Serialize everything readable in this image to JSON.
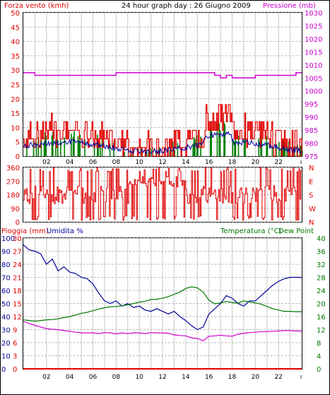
{
  "header": {
    "left_label": "Forza vento (kmh)",
    "title": "24 hour graph day : 26 Giugno 2009",
    "right_label": "Pressione (mb)"
  },
  "panel3_labels": {
    "rain": "Pioggia (mm)",
    "humidity": "Umidita %",
    "temperature": "Temperatura (°C)",
    "dew": "Dew Point"
  },
  "colors": {
    "wind": "#e00000",
    "wind_avg": "#0000a0",
    "wind_green": "#008000",
    "pressure": "#cc00cc",
    "humidity": "#000099",
    "temperature": "#007700",
    "dew": "#cc00cc",
    "rain": "#dd0000",
    "grid": "#c8c8c8"
  },
  "chart_data": [
    {
      "type": "line",
      "name": "wind_pressure",
      "x_ticks": [
        "02",
        "04",
        "06",
        "08",
        "10",
        "12",
        "14",
        "16",
        "18",
        "20",
        "22"
      ],
      "left_axis_label": "Forza vento (kmh)",
      "left_ticks": [
        "0",
        "5",
        "10",
        "15",
        "20",
        "25",
        "30",
        "35",
        "40",
        "45",
        "50"
      ],
      "ylim": [
        0,
        50
      ],
      "right_axis_label": "Pressione (mb)",
      "right_ticks": [
        "975",
        "980",
        "985",
        "990",
        "995",
        "1000",
        "1005",
        "1010",
        "1015",
        "1020",
        "1025",
        "1030"
      ],
      "y2lim": [
        975,
        1030
      ],
      "series": [
        {
          "name": "Pressione",
          "x": [
            0,
            1,
            2,
            3,
            4,
            5,
            6,
            7,
            8,
            9,
            10,
            11,
            12,
            13,
            14,
            15,
            16,
            16.5,
            17,
            17.5,
            18,
            19,
            20,
            21,
            22,
            23,
            23.5,
            24
          ],
          "values": [
            1007,
            1006,
            1006,
            1006,
            1006,
            1006,
            1006,
            1006,
            1007,
            1007,
            1007,
            1007,
            1007,
            1007,
            1007,
            1007,
            1007,
            1006,
            1005,
            1006,
            1005,
            1005,
            1006,
            1006,
            1006,
            1006,
            1007,
            1007
          ]
        }
      ]
    },
    {
      "type": "line",
      "name": "wind_direction",
      "x_ticks": [
        "02",
        "04",
        "06",
        "08",
        "10",
        "12",
        "14",
        "16",
        "18",
        "20",
        "22"
      ],
      "left_ticks": [
        "0",
        "90",
        "180",
        "270",
        "360"
      ],
      "ylim": [
        0,
        360
      ],
      "right_ticks": [
        "N",
        "E",
        "S",
        "W",
        "N"
      ]
    },
    {
      "type": "line",
      "name": "temp_humidity",
      "x_ticks": [
        "02",
        "04",
        "06",
        "08",
        "10",
        "12",
        "14",
        "16",
        "18",
        "20",
        "22"
      ],
      "humidity_ticks": [
        "0",
        "10",
        "20",
        "30",
        "40",
        "50",
        "60",
        "70",
        "80",
        "90",
        "100"
      ],
      "rain_ticks": [
        "0",
        "3",
        "6",
        "9",
        "12",
        "15",
        "18",
        "21",
        "24",
        "27",
        "30"
      ],
      "temp_ticks": [
        "0",
        "4",
        "8",
        "12",
        "16",
        "20",
        "24",
        "28",
        "32",
        "36",
        "40"
      ],
      "series": [
        {
          "name": "Umidita %",
          "x": [
            0,
            0.5,
            1,
            1.5,
            2,
            2.5,
            3,
            3.5,
            4,
            4.5,
            5,
            5.5,
            6,
            6.5,
            7,
            7.5,
            8,
            8.5,
            9,
            9.5,
            10,
            10.5,
            11,
            11.5,
            12,
            12.5,
            13,
            13.5,
            14,
            14.5,
            15,
            15.5,
            16,
            16.5,
            17,
            17.5,
            18,
            18.5,
            19,
            19.5,
            20,
            20.5,
            21,
            21.5,
            22,
            22.5,
            23,
            23.5,
            24
          ],
          "values": [
            95,
            91,
            90,
            88,
            80,
            84,
            75,
            78,
            74,
            73,
            70,
            69,
            65,
            58,
            52,
            50,
            52,
            48,
            50,
            47,
            48,
            45,
            44,
            46,
            44,
            42,
            44,
            40,
            37,
            33,
            30,
            32,
            42,
            46,
            50,
            56,
            54,
            50,
            48,
            52,
            52,
            56,
            60,
            64,
            67,
            69,
            70,
            70,
            70
          ]
        },
        {
          "name": "Temperatura (°C)",
          "x": [
            0,
            0.5,
            1,
            1.5,
            2,
            2.5,
            3,
            3.5,
            4,
            4.5,
            5,
            5.5,
            6,
            6.5,
            7,
            7.5,
            8,
            8.5,
            9,
            9.5,
            10,
            10.5,
            11,
            11.5,
            12,
            12.5,
            13,
            13.5,
            14,
            14.5,
            15,
            15.5,
            16,
            16.5,
            17,
            17.5,
            18,
            18.5,
            19,
            19.5,
            20,
            20.5,
            21,
            21.5,
            22,
            22.5,
            23,
            23.5,
            24
          ],
          "values": [
            15,
            14.8,
            14.6,
            14.8,
            15,
            15.1,
            15.3,
            15.7,
            16,
            16.5,
            17,
            17.3,
            17.8,
            18.3,
            18.7,
            19,
            19.1,
            19.3,
            19.6,
            20,
            20.4,
            20.7,
            21.2,
            21.3,
            21.6,
            22.1,
            22.8,
            23.5,
            24.6,
            25.1,
            24.8,
            23.5,
            21,
            19.9,
            20.2,
            20.6,
            20.3,
            20.1,
            20.8,
            20.5,
            20.2,
            19.8,
            19.1,
            18.4,
            18,
            17.6,
            17.6,
            17.5,
            17.5
          ]
        },
        {
          "name": "Dew Point",
          "x": [
            0,
            0.5,
            1,
            1.5,
            2,
            2.5,
            3,
            3.5,
            4,
            4.5,
            5,
            5.5,
            6,
            6.5,
            7,
            7.5,
            8,
            8.5,
            9,
            9.5,
            10,
            10.5,
            11,
            11.5,
            12,
            12.5,
            13,
            13.5,
            14,
            14.5,
            15,
            15.5,
            16,
            16.5,
            17,
            17.5,
            18,
            18.5,
            19,
            19.5,
            20,
            20.5,
            21,
            21.5,
            22,
            22.5,
            23,
            23.5,
            24
          ],
          "values": [
            14.5,
            13.9,
            13.3,
            12.8,
            12.3,
            12.1,
            12,
            11.7,
            11.5,
            11.2,
            11,
            11,
            11,
            10.8,
            11.1,
            11,
            10.7,
            11,
            10.8,
            11,
            11,
            10.8,
            11.1,
            11,
            11,
            10.9,
            10.4,
            10.2,
            10.1,
            9.5,
            9.3,
            8.6,
            10,
            10.1,
            10.3,
            10.1,
            10,
            10.6,
            10.9,
            11.1,
            11.2,
            11.4,
            11.4,
            11.5,
            11.6,
            11.7,
            11.7,
            11.6,
            11.6
          ]
        },
        {
          "name": "Pioggia (mm)",
          "x": [
            0,
            24
          ],
          "values": [
            0,
            0
          ]
        }
      ]
    }
  ]
}
